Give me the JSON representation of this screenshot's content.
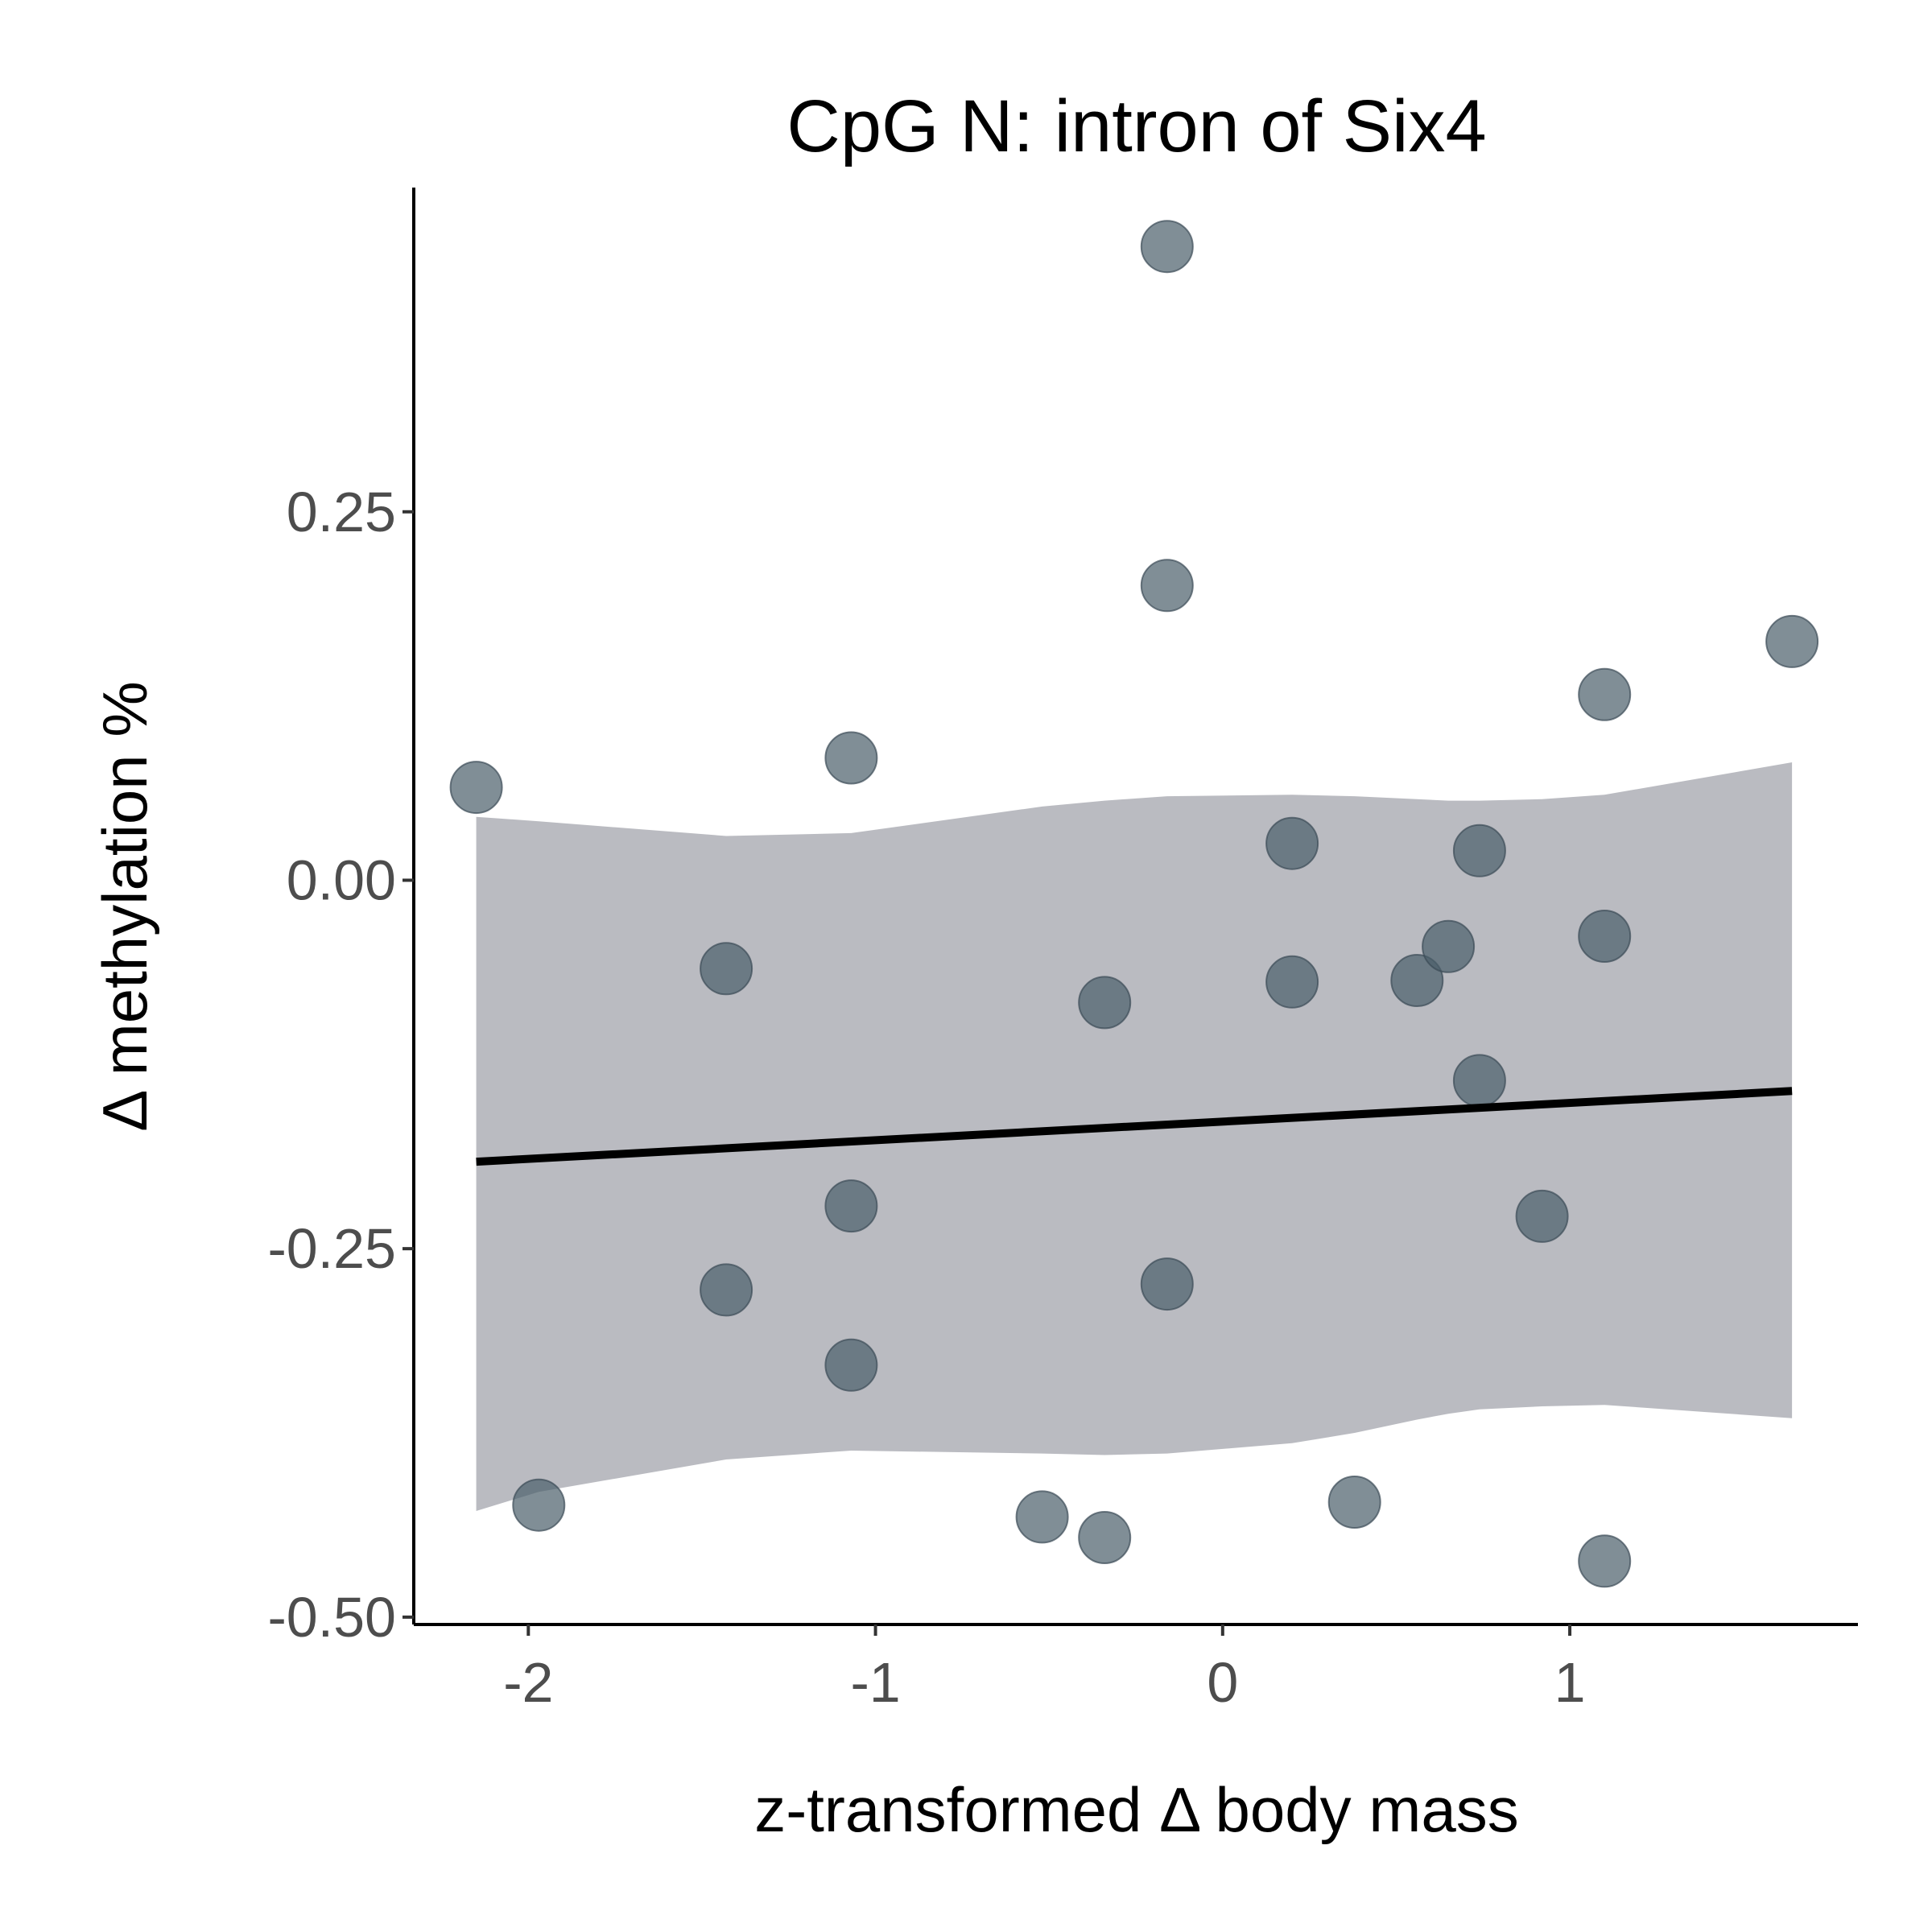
{
  "chart_data": {
    "type": "scatter",
    "title": "CpG N: intron of Six4",
    "xlabel": "z-transformed Δ body mass",
    "ylabel": "Δ methylation %",
    "xlim": [
      -2.33,
      1.83
    ],
    "ylim": [
      -0.505,
      0.47
    ],
    "x_ticks": [
      {
        "value": -2,
        "label": "-2"
      },
      {
        "value": -1,
        "label": "-1"
      },
      {
        "value": 0,
        "label": "0"
      },
      {
        "value": 1,
        "label": "1"
      }
    ],
    "y_ticks": [
      {
        "value": 0.25,
        "label": "0.25"
      },
      {
        "value": 0.0,
        "label": "0.00"
      },
      {
        "value": -0.25,
        "label": "-0.25"
      },
      {
        "value": -0.5,
        "label": "-0.50"
      }
    ],
    "grid": false,
    "legend": "none",
    "colors": {
      "point": "#4a5e6a",
      "point_stroke": "#3a4a55",
      "ribbon": "#a6a8b0",
      "fit_line": "#000000"
    },
    "points": [
      {
        "x": -2.15,
        "y": 0.063
      },
      {
        "x": -1.97,
        "y": -0.424
      },
      {
        "x": -1.43,
        "y": -0.06
      },
      {
        "x": -1.43,
        "y": -0.278
      },
      {
        "x": -1.07,
        "y": 0.083
      },
      {
        "x": -1.07,
        "y": -0.221
      },
      {
        "x": -1.07,
        "y": -0.329
      },
      {
        "x": -0.52,
        "y": -0.432
      },
      {
        "x": -0.34,
        "y": -0.083
      },
      {
        "x": -0.34,
        "y": -0.446
      },
      {
        "x": -0.16,
        "y": 0.43
      },
      {
        "x": -0.16,
        "y": 0.2
      },
      {
        "x": -0.16,
        "y": -0.274
      },
      {
        "x": 0.2,
        "y": 0.025
      },
      {
        "x": 0.2,
        "y": -0.069
      },
      {
        "x": 0.38,
        "y": -0.422
      },
      {
        "x": 0.56,
        "y": -0.068
      },
      {
        "x": 0.65,
        "y": -0.045
      },
      {
        "x": 0.74,
        "y": 0.02
      },
      {
        "x": 0.74,
        "y": -0.136
      },
      {
        "x": 0.92,
        "y": -0.228
      },
      {
        "x": 1.1,
        "y": 0.126
      },
      {
        "x": 1.1,
        "y": -0.038
      },
      {
        "x": 1.1,
        "y": -0.462
      },
      {
        "x": 1.64,
        "y": 0.162
      }
    ],
    "fit": {
      "x": [
        -2.15,
        1.64
      ],
      "y": [
        -0.191,
        -0.143
      ]
    },
    "ribbon": {
      "x": [
        -2.15,
        -1.97,
        -1.43,
        -1.07,
        -0.52,
        -0.34,
        -0.16,
        0.2,
        0.38,
        0.56,
        0.65,
        0.74,
        0.92,
        1.1,
        1.64
      ],
      "upper": [
        0.043,
        0.04,
        0.03,
        0.032,
        0.05,
        0.054,
        0.057,
        0.058,
        0.057,
        0.055,
        0.054,
        0.054,
        0.055,
        0.058,
        0.08
      ],
      "lower": [
        -0.428,
        -0.415,
        -0.393,
        -0.387,
        -0.389,
        -0.39,
        -0.389,
        -0.382,
        -0.375,
        -0.366,
        -0.362,
        -0.359,
        -0.357,
        -0.356,
        -0.365
      ]
    }
  }
}
